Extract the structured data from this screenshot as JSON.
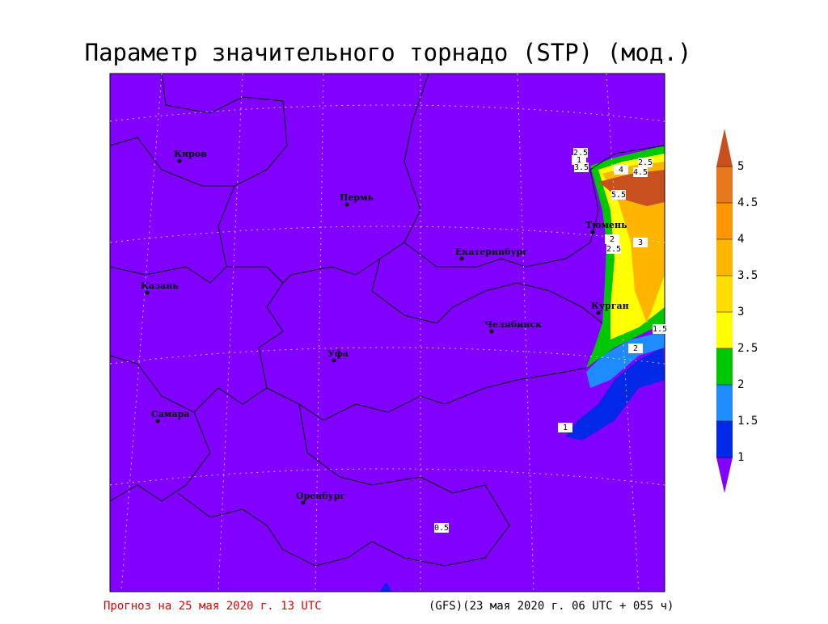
{
  "title": "Параметр значительного торнадо (STP) (мод.)",
  "cities": [
    "Киров",
    "Пермь",
    "Екатеринбург",
    "Казань",
    "Тюмень",
    "Курган",
    "Челябинск",
    "Уфа",
    "Самара",
    "Оренбург"
  ],
  "colorbar": {
    "ticks": [
      1,
      1.5,
      2,
      2.5,
      3,
      3.5,
      4,
      4.5,
      5
    ],
    "colors": [
      "#0028e6",
      "#1e8cff",
      "#00c800",
      "#ffff00",
      "#ffdc00",
      "#ffb400",
      "#ff9600",
      "#e6781e"
    ],
    "below_color": "#8200ff",
    "above_color": "#c8501e"
  },
  "contour_labels": [
    2.5,
    1,
    3.5,
    2.5,
    4,
    4.5,
    5.5,
    2,
    3,
    2.5,
    1.5,
    2,
    1,
    0.5
  ],
  "footer": {
    "forecast": "Прогноз на 25 мая 2020 г. 13 UTC",
    "model": "(GFS)(23 мая 2020 г. 06 UTC + 055 ч)"
  }
}
